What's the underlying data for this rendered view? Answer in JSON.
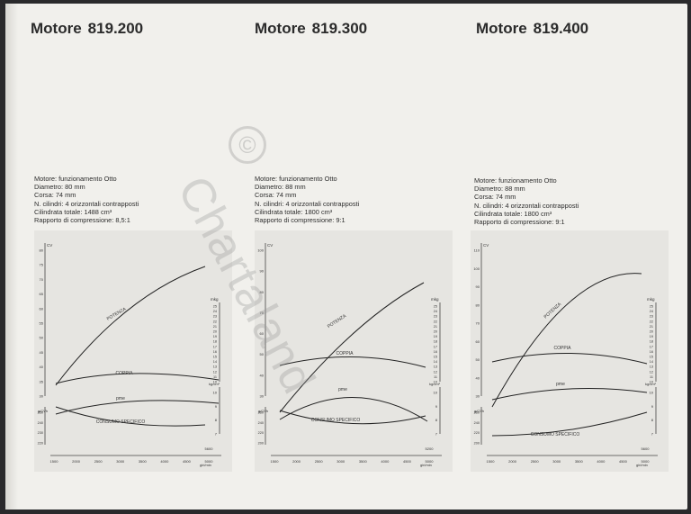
{
  "watermark": {
    "symbol": "©",
    "text": "Chartaland"
  },
  "engines": [
    {
      "label": "Motore",
      "number": "819.200",
      "specs": [
        "Motore: funzionamento Otto",
        "Diametro: 80 mm",
        "Corsa: 74 mm",
        "N. cilindri: 4 orizzontali contrapposti",
        "Cilindrata totale: 1488 cm³",
        "Rapporto di compressione: 8,5:1"
      ],
      "chart": {
        "unit_power": "CV",
        "unit_torque": "mkg",
        "unit_pme": "kg/cm²",
        "unit_consumption": "g/CVh",
        "unit_rpm": "giri/min",
        "curve_labels": [
          "POTENZA",
          "COPPIA",
          "pme",
          "CONSUMO SPECIFICO"
        ],
        "power_ticks": [
          "30",
          "35",
          "40",
          "45",
          "50",
          "55",
          "60",
          "65",
          "70",
          "75",
          "80"
        ],
        "torque_ticks": [
          "10",
          "11",
          "12",
          "13",
          "14",
          "15",
          "16",
          "17",
          "18",
          "19",
          "20",
          "21",
          "22",
          "23",
          "24",
          "25"
        ],
        "pme_ticks": [
          "7",
          "8",
          "9",
          "10"
        ],
        "consumption_ticks": [
          "220",
          "230",
          "240",
          "250"
        ],
        "rpm_ticks": [
          "1500",
          "2000",
          "2500",
          "3000",
          "3500",
          "4000",
          "4500",
          "5000"
        ],
        "rpm_extra": "5600"
      }
    },
    {
      "label": "Motore",
      "number": "819.300",
      "specs": [
        "Motore: funzionamento Otto",
        "Diametro: 88 mm",
        "Corsa: 74 mm",
        "N. cilindri: 4 orizzontali contrapposti",
        "Cilindrata totale: 1800 cm³",
        "Rapporto di compressione: 9:1"
      ],
      "chart": {
        "unit_power": "CV",
        "unit_torque": "mkg",
        "unit_pme": "kg/cm²",
        "unit_consumption": "g/CVh",
        "unit_rpm": "giri/min",
        "curve_labels": [
          "POTENZA",
          "COPPIA",
          "pme",
          "CONSUMO SPECIFICO"
        ],
        "power_ticks": [
          "30",
          "40",
          "50",
          "60",
          "70",
          "80",
          "90",
          "100"
        ],
        "torque_ticks": [
          "10",
          "11",
          "12",
          "13",
          "14",
          "15",
          "16",
          "17",
          "18",
          "19",
          "20",
          "21",
          "22",
          "23",
          "24",
          "25"
        ],
        "pme_ticks": [
          "7",
          "8",
          "9",
          "10"
        ],
        "consumption_ticks": [
          "200",
          "220",
          "240",
          "260"
        ],
        "rpm_ticks": [
          "1500",
          "2000",
          "2500",
          "3000",
          "3500",
          "4000",
          "4500",
          "5000"
        ],
        "rpm_extra": "5200"
      }
    },
    {
      "label": "Motore",
      "number": "819.400",
      "specs": [
        "Motore: funzionamento Otto",
        "Diametro: 88 mm",
        "Corsa: 74 mm",
        "N. cilindri: 4 orizzontali contrapposti",
        "Cilindrata totale: 1800 cm³",
        "Rapporto di compressione: 9:1"
      ],
      "chart": {
        "unit_power": "CV",
        "unit_torque": "mkg",
        "unit_pme": "kg/cm²",
        "unit_consumption": "g/CVh",
        "unit_rpm": "giri/min",
        "curve_labels": [
          "POTENZA",
          "COPPIA",
          "pme",
          "CONSUMO SPECIFICO"
        ],
        "power_ticks": [
          "30",
          "40",
          "50",
          "60",
          "70",
          "80",
          "90",
          "100",
          "110"
        ],
        "torque_ticks": [
          "10",
          "11",
          "12",
          "13",
          "14",
          "15",
          "16",
          "17",
          "18",
          "19",
          "20",
          "21",
          "22",
          "23",
          "24",
          "25"
        ],
        "pme_ticks": [
          "7",
          "8",
          "9",
          "10"
        ],
        "consumption_ticks": [
          "200",
          "220",
          "240",
          "260"
        ],
        "rpm_ticks": [
          "1500",
          "2000",
          "2500",
          "3000",
          "3500",
          "4000",
          "4500",
          "5000"
        ],
        "rpm_extra": "5600"
      }
    }
  ]
}
